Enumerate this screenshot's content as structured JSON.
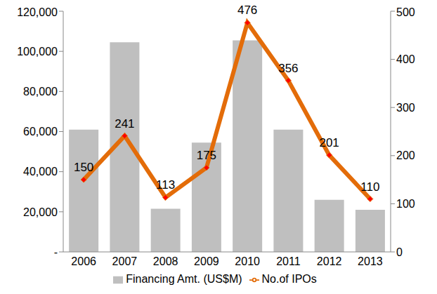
{
  "chart_data": {
    "type": "bar",
    "categories": [
      "2006",
      "2007",
      "2008",
      "2009",
      "2010",
      "2011",
      "2012",
      "2013"
    ],
    "series": [
      {
        "name": "Financing Amt. (US$M)",
        "type": "bar",
        "color": "#bfbfbf",
        "values": [
          61000,
          104500,
          21500,
          54500,
          105500,
          61000,
          26000,
          21000
        ]
      },
      {
        "name": "No.of IPOs",
        "type": "line",
        "axis": "y2",
        "color": "#e36c09",
        "marker": "diamond",
        "data_labels": true,
        "values": [
          150,
          241,
          113,
          175,
          476,
          356,
          201,
          110
        ]
      }
    ],
    "ylim": [
      0,
      120000
    ],
    "yticks": [
      {
        "value": 0,
        "label": "-"
      },
      {
        "value": 20000,
        "label": "20,000"
      },
      {
        "value": 40000,
        "label": "40,000"
      },
      {
        "value": 60000,
        "label": "60,000"
      },
      {
        "value": 80000,
        "label": "80,000"
      },
      {
        "value": 100000,
        "label": "100,000"
      },
      {
        "value": 120000,
        "label": "120,000"
      }
    ],
    "y2lim": [
      0,
      500
    ],
    "y2ticks": [
      0,
      100,
      200,
      300,
      400,
      500
    ],
    "grid": false,
    "legend": "bottom"
  }
}
